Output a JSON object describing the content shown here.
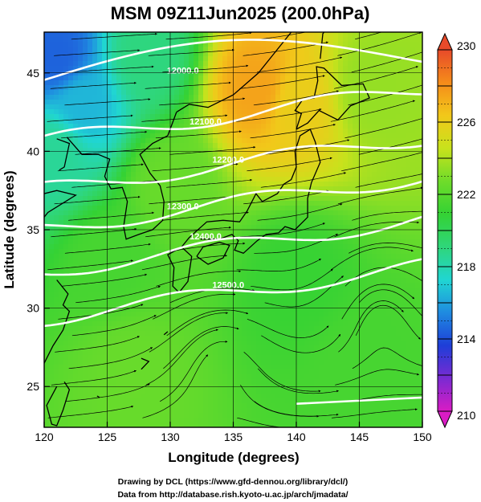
{
  "figure": {
    "title": "MSM 09Z11Jun2025 (200.0hPa)",
    "credit_line1": "Drawing by DCL (https://www.gfd-dennou.org/library/dcl/)",
    "credit_line2": "Data from http://database.rish.kyoto-u.ac.jp/arch/jmadata/"
  },
  "chart_data": {
    "type": "heatmap",
    "title": "MSM 09Z11Jun2025 (200.0hPa)",
    "xlabel": "Longitude (degrees)",
    "ylabel": "Latitude  (degrees)",
    "xlim": [
      120,
      150
    ],
    "ylim": [
      22.4,
      47.6
    ],
    "xticks": [
      120,
      125,
      130,
      135,
      140,
      145,
      150
    ],
    "yticks": [
      25,
      30,
      35,
      40,
      45
    ],
    "grid": true,
    "colorbar": {
      "min": 210,
      "max": 230,
      "ticks": [
        210,
        214,
        218,
        222,
        226,
        230
      ],
      "colors": [
        "#d91cc4",
        "#7a2ad2",
        "#1e3ed8",
        "#1f8be0",
        "#20d6d2",
        "#2fd67a",
        "#34d234",
        "#6fdc2a",
        "#c8e21c",
        "#f2c81a",
        "#f58c1a",
        "#e84a2a"
      ],
      "extends": "both"
    },
    "temperature_samples": [
      {
        "lon": 121,
        "lat": 46,
        "value": 214.5
      },
      {
        "lon": 123,
        "lat": 43,
        "value": 216.5
      },
      {
        "lon": 121,
        "lat": 40,
        "value": 218.5
      },
      {
        "lon": 128,
        "lat": 46,
        "value": 219
      },
      {
        "lon": 137,
        "lat": 44,
        "value": 227.5
      },
      {
        "lon": 140,
        "lat": 43,
        "value": 226
      },
      {
        "lon": 146,
        "lat": 44,
        "value": 223.5
      },
      {
        "lon": 130,
        "lat": 38,
        "value": 222.5
      },
      {
        "lon": 125,
        "lat": 33,
        "value": 221.5
      },
      {
        "lon": 140,
        "lat": 32,
        "value": 221
      },
      {
        "lon": 127,
        "lat": 26,
        "value": 222.5
      },
      {
        "lon": 145,
        "lat": 26,
        "value": 221.5
      }
    ],
    "height_contours": [
      {
        "label": "12000.0",
        "value": 12000
      },
      {
        "label": "12100.0",
        "value": 12100
      },
      {
        "label": "12200.0",
        "value": 12200
      },
      {
        "label": "12300.0",
        "value": 12300
      },
      {
        "label": "12400.0",
        "value": 12400
      },
      {
        "label": "12500.0",
        "value": 12500
      }
    ],
    "features": {
      "streamlines": "westerly flow, anticyclonic circulation near 147E 31N",
      "coastlines": true
    }
  }
}
